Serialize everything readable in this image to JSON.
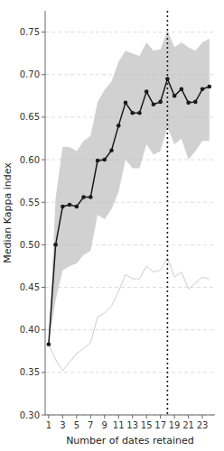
{
  "chart_data": {
    "type": "line",
    "xlabel": "Number of dates retained",
    "ylabel": "Median Kappa index",
    "x": [
      1,
      2,
      3,
      4,
      5,
      6,
      7,
      8,
      9,
      10,
      11,
      12,
      13,
      14,
      15,
      16,
      17,
      18,
      19,
      20,
      21,
      22,
      23,
      24
    ],
    "series": [
      {
        "type": "band",
        "color": "#b8b8b8",
        "upper": [
          0.383,
          0.555,
          0.615,
          0.615,
          0.61,
          0.622,
          0.628,
          0.668,
          0.682,
          0.692,
          0.715,
          0.728,
          0.725,
          0.722,
          0.738,
          0.728,
          0.73,
          0.752,
          0.732,
          0.738,
          0.732,
          0.728,
          0.738,
          0.742
        ],
        "lower": [
          0.383,
          0.435,
          0.47,
          0.475,
          0.478,
          0.488,
          0.493,
          0.535,
          0.53,
          0.542,
          0.562,
          0.6,
          0.59,
          0.59,
          0.618,
          0.606,
          0.61,
          0.638,
          0.618,
          0.625,
          0.6,
          0.61,
          0.622,
          0.622
        ]
      },
      {
        "type": "line",
        "color": "#cccccc",
        "values": [
          0.383,
          0.365,
          0.352,
          0.362,
          0.372,
          0.378,
          0.385,
          0.415,
          0.42,
          0.428,
          0.445,
          0.465,
          0.46,
          0.46,
          0.475,
          0.468,
          0.47,
          0.485,
          0.462,
          0.468,
          0.448,
          0.455,
          0.462,
          0.46
        ]
      },
      {
        "type": "line",
        "color": "#1a1a1a",
        "marker": "circle",
        "values": [
          0.383,
          0.5,
          0.545,
          0.547,
          0.545,
          0.556,
          0.556,
          0.599,
          0.6,
          0.611,
          0.64,
          0.667,
          0.655,
          0.655,
          0.68,
          0.665,
          0.668,
          0.695,
          0.675,
          0.683,
          0.667,
          0.668,
          0.683,
          0.686
        ]
      }
    ],
    "vline": {
      "x": 18,
      "color": "#1a1a1a",
      "line_style": "dotted"
    },
    "xlim": [
      0.5,
      24.8
    ],
    "ylim": [
      0.3,
      0.775
    ],
    "xticks": [
      1,
      3,
      5,
      7,
      9,
      11,
      13,
      15,
      17,
      19,
      21,
      23
    ],
    "yticks": [
      {
        "value": 0.3,
        "label": "0.30"
      },
      0.35,
      {
        "value": 0.4,
        "label": "0.40"
      },
      0.45,
      {
        "value": 0.5,
        "label": "0.50"
      },
      0.55,
      {
        "value": 0.6,
        "label": "0.60"
      },
      0.65,
      {
        "value": 0.7,
        "label": "0.70"
      },
      0.75
    ],
    "grid": true
  }
}
